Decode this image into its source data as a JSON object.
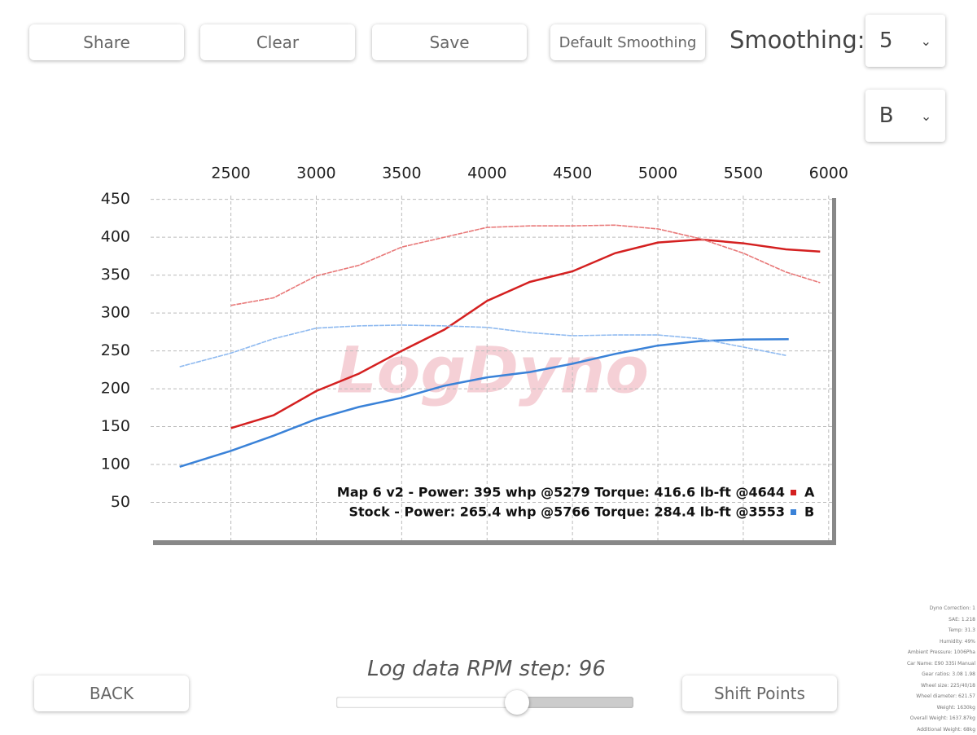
{
  "toolbar": {
    "buttons": [
      "Share",
      "Clear",
      "Save",
      "Default Smoothing"
    ],
    "smoothing_label": "Smoothing:",
    "smoothing_value": "5",
    "selector_value": "B"
  },
  "chart_data": {
    "type": "line",
    "watermark": "LogDyno",
    "xlim": [
      2030,
      6020
    ],
    "xticks": [
      2500,
      3000,
      3500,
      4000,
      4500,
      5000,
      5500,
      6000
    ],
    "ylim": [
      0,
      455
    ],
    "yticks": [
      50,
      100,
      150,
      200,
      250,
      300,
      350,
      400,
      450
    ],
    "grid": true,
    "series": [
      {
        "color": "#d42020",
        "style": "power",
        "x": [
          2500,
          2750,
          3000,
          3250,
          3500,
          3750,
          4000,
          4250,
          4500,
          4750,
          5000,
          5250,
          5500,
          5750,
          5950
        ],
        "values": [
          148,
          165,
          197,
          220,
          250,
          278,
          316,
          341,
          355,
          379,
          393,
          397,
          392,
          384,
          381
        ]
      },
      {
        "color": "#e87878",
        "style": "torque",
        "x": [
          2500,
          2750,
          3000,
          3250,
          3500,
          3750,
          4000,
          4250,
          4500,
          4750,
          5000,
          5250,
          5500,
          5750,
          5950
        ],
        "values": [
          310,
          320,
          349,
          363,
          387,
          400,
          413,
          415,
          415,
          416,
          411,
          398,
          379,
          354,
          340
        ]
      },
      {
        "color": "#3a82d8",
        "style": "power",
        "x": [
          2200,
          2500,
          2750,
          3000,
          3250,
          3500,
          3750,
          4000,
          4250,
          4500,
          4750,
          5000,
          5250,
          5500,
          5766
        ],
        "values": [
          97,
          118,
          138,
          160,
          176,
          188,
          204,
          215,
          222,
          233,
          246,
          257,
          263,
          265,
          265.4
        ]
      },
      {
        "color": "#8fbaf0",
        "style": "torque",
        "x": [
          2200,
          2500,
          2750,
          3000,
          3250,
          3500,
          3750,
          4000,
          4250,
          4500,
          4750,
          5000,
          5250,
          5500,
          5750
        ],
        "values": [
          229,
          247,
          266,
          280,
          283,
          284,
          283,
          281,
          274,
          270,
          271,
          271,
          266,
          255,
          244
        ]
      }
    ],
    "annotations": [
      {
        "text": "Map 6 v2 - Power: 395 whp @5279 Torque: 416.6 lb-ft @4644",
        "marker": "A",
        "color": "#d42020"
      },
      {
        "text": "Stock - Power: 265.4 whp @5766 Torque: 284.4 lb-ft @3553",
        "marker": "B",
        "color": "#3a82d8"
      }
    ]
  },
  "footer": {
    "back": "BACK",
    "step_label": "Log data RPM step: 96",
    "shift_points": "Shift Points"
  },
  "info_lines": [
    "Dyno Correction: 1",
    "SAE: 1.218",
    "Temp: 31.3",
    "Humidity: 49%",
    "Ambient Pressure: 1006Pha",
    "Car Name: E90 335i Manual",
    "Gear ratios: 3.08 1.98",
    "Wheel size: 225/40/18",
    "Wheel diameter: 621.57",
    "Weight: 1630kg",
    "Overall Weight: 1637.87kg",
    "Additional Weight: 68kg"
  ]
}
